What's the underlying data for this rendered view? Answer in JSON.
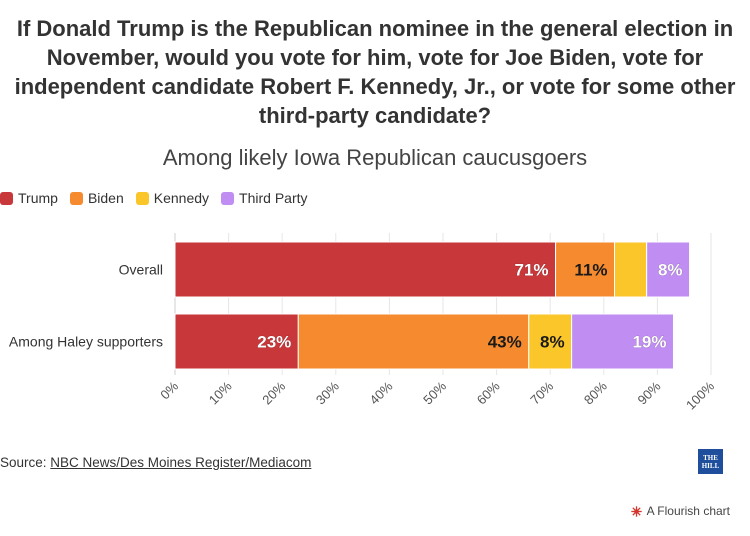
{
  "title": "If Donald Trump is the Republican nominee in the general election in November, would you vote for him, vote for Joe Biden, vote for independent candidate Robert F. Kennedy, Jr., or vote for some other third-party candidate?",
  "subtitle": "Among likely Iowa Republican caucusgoers",
  "source": {
    "prefix": "Source: ",
    "link_text": "NBC News/Des Moines Register/Mediacom"
  },
  "logo_text": "THE HILL",
  "flourish_label": "A Flourish chart",
  "colors": {
    "Trump": "#c8373a",
    "Biden": "#f58b2e",
    "Kennedy": "#fbc62a",
    "Third Party": "#c08ef2"
  },
  "chart_data": {
    "type": "bar",
    "orientation": "horizontal",
    "stacked": true,
    "categories": [
      "Overall",
      "Among Haley supporters"
    ],
    "series": [
      {
        "name": "Trump",
        "values": [
          71,
          23
        ],
        "labels": [
          "71%",
          "23%"
        ]
      },
      {
        "name": "Biden",
        "values": [
          11,
          43
        ],
        "labels": [
          "11%",
          "43%"
        ]
      },
      {
        "name": "Kennedy",
        "values": [
          6,
          8
        ],
        "labels": [
          "",
          "8%"
        ]
      },
      {
        "name": "Third Party",
        "values": [
          8,
          19
        ],
        "labels": [
          "8%",
          "19%"
        ]
      }
    ],
    "xlim": [
      0,
      100
    ],
    "xticks": [
      "0%",
      "10%",
      "20%",
      "30%",
      "40%",
      "50%",
      "60%",
      "70%",
      "80%",
      "90%",
      "100%"
    ],
    "grid": true,
    "legend_position": "top-left"
  }
}
